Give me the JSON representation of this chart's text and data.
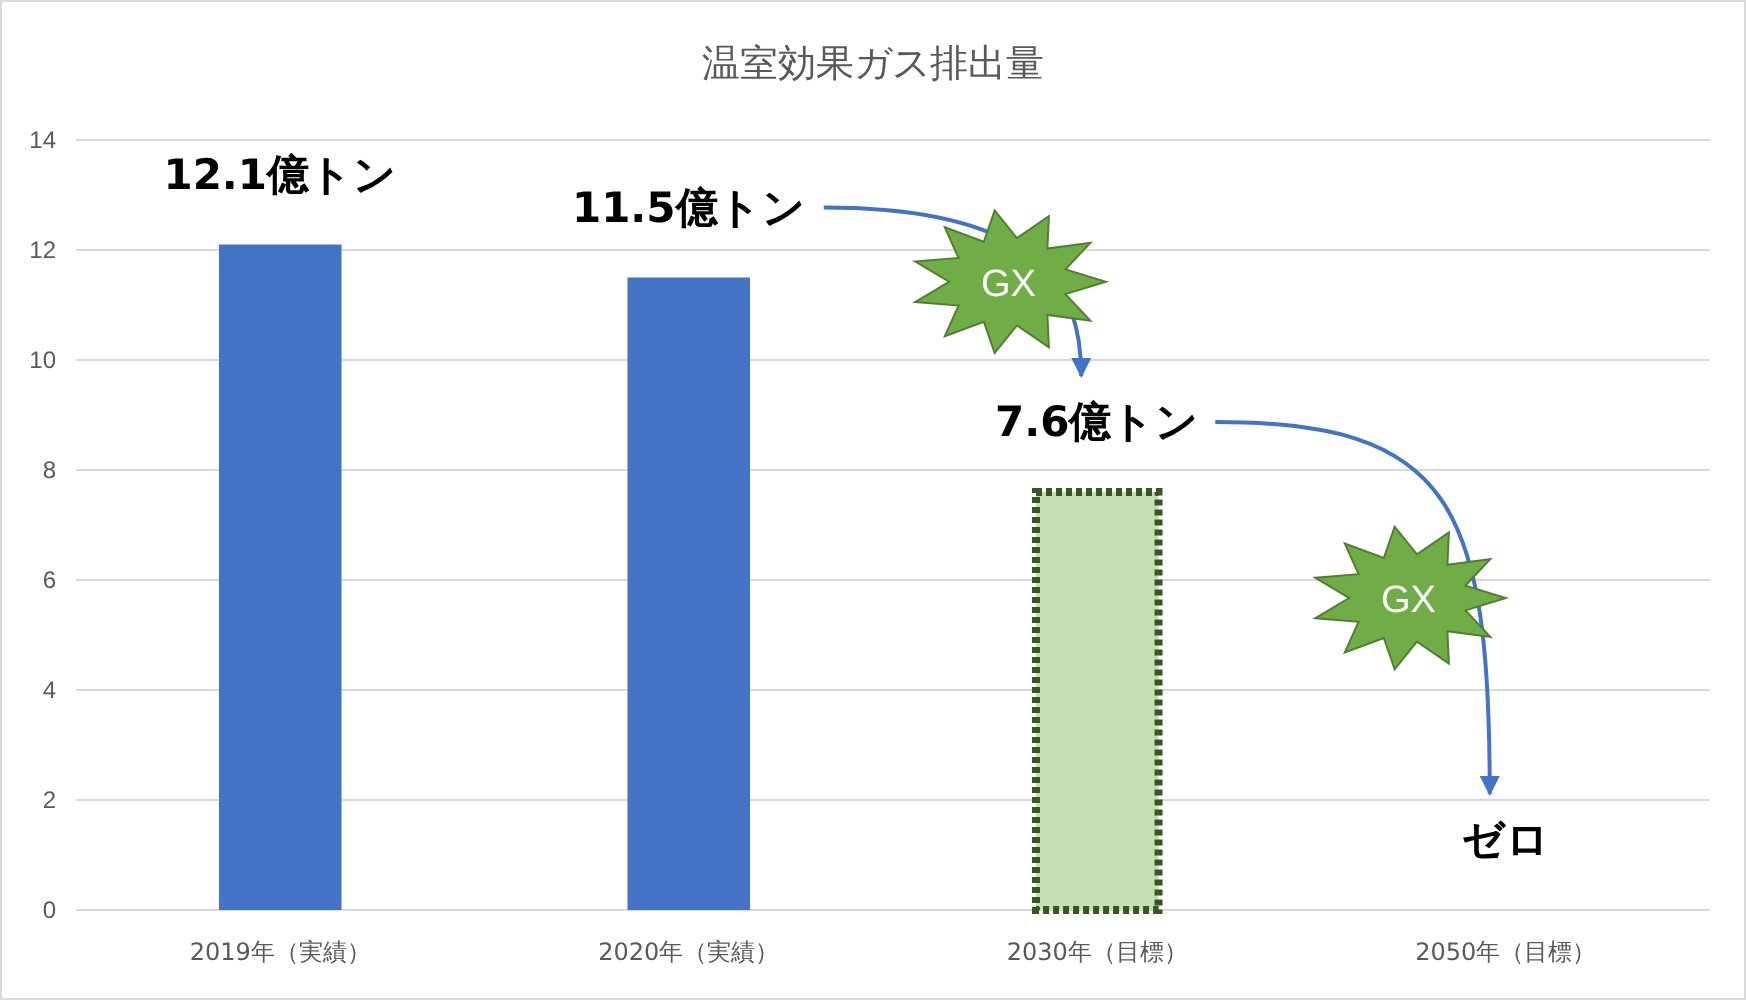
{
  "chart_data": {
    "type": "bar",
    "title": "温室効果ガス排出量",
    "categories": [
      "2019年（実績）",
      "2020年（実績）",
      "2030年（目標）",
      "2050年（目標）"
    ],
    "series": [
      {
        "color": "#4472c4",
        "values": [
          12.1,
          11.5,
          null,
          null
        ],
        "value_labels": [
          "12.1億トン",
          "11.5億トン",
          null,
          null
        ]
      },
      {
        "color": "#c5e0b4",
        "line_style": "dotted",
        "values": [
          null,
          null,
          7.6,
          0
        ],
        "value_labels": [
          null,
          null,
          "7.6億トン",
          "ゼロ"
        ]
      }
    ],
    "ylim": [
      0,
      14
    ],
    "yticks": [
      0,
      2,
      4,
      6,
      8,
      10,
      12,
      14
    ],
    "grid": "y",
    "annotations": [
      "GX",
      "GX"
    ]
  }
}
